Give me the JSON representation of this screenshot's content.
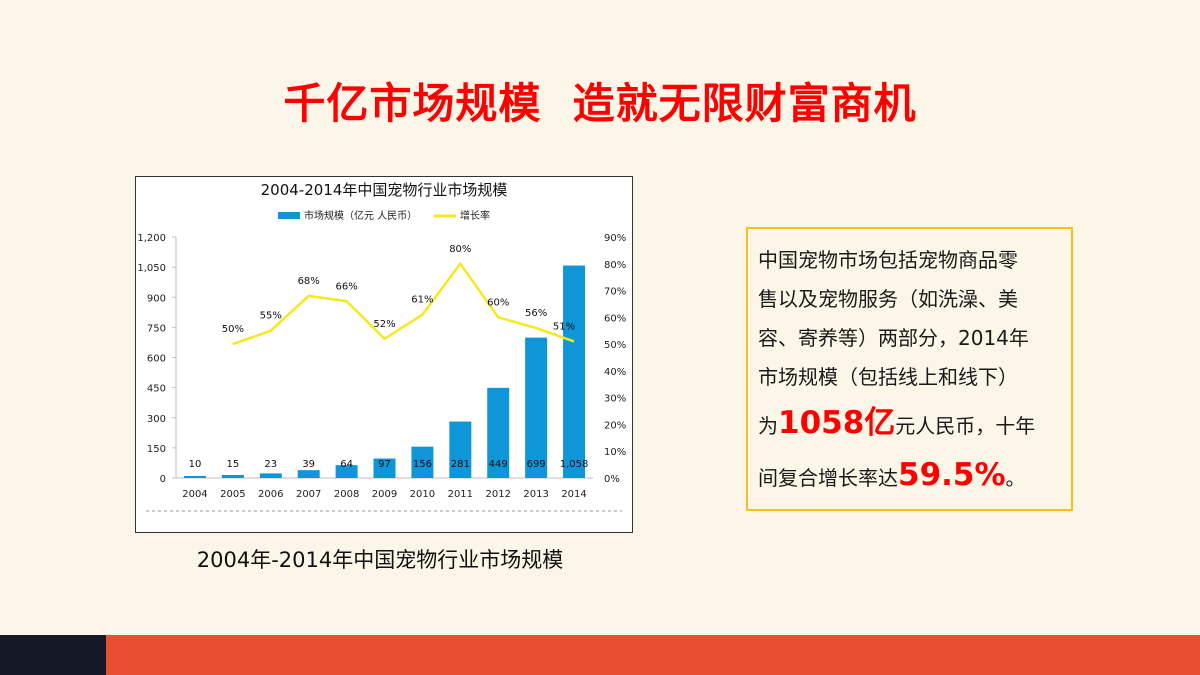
{
  "slide": {
    "title": "千亿市场规模  造就无限财富商机",
    "caption": "2004年-2014年中国宠物行业市场规模"
  },
  "info": {
    "line1": "中国宠物市场包括宠物商品零",
    "line2": "售以及宠物服务（如洗澡、美",
    "line3": "容、寄养等）两部分，2014年",
    "line4": "市场规模（包括线上和线下）",
    "line5_pre": "为",
    "line5_hl": "1058亿",
    "line5_post": "元人民币，十年",
    "line6_pre": "间复合增长率达",
    "line6_hl": "59.5%",
    "line6_post": "。"
  },
  "colors": {
    "title": "#ff0000",
    "bar": "#0e96d8",
    "line": "#f5e91e",
    "info_border": "#f2c21a",
    "footer_dark": "#151826",
    "footer_orange": "#e84e2f"
  },
  "chart_data": {
    "type": "bar",
    "title": "2004-2014年中国宠物行业市场规模",
    "categories": [
      "2004",
      "2005",
      "2006",
      "2007",
      "2008",
      "2009",
      "2010",
      "2011",
      "2012",
      "2013",
      "2014"
    ],
    "series": [
      {
        "name": "市场规模（亿元 人民币）",
        "type": "bar",
        "axis": "left",
        "values": [
          10,
          15,
          23,
          39,
          64,
          97,
          156,
          281,
          449,
          699,
          1058
        ],
        "labels": [
          "10",
          "15",
          "23",
          "39",
          "64",
          "97",
          "156",
          "281",
          "449",
          "699",
          "1,058"
        ]
      },
      {
        "name": "增长率",
        "type": "line",
        "axis": "right",
        "values": [
          null,
          50,
          55,
          68,
          66,
          52,
          61,
          80,
          60,
          56,
          51
        ],
        "labels": [
          "",
          "50%",
          "55%",
          "68%",
          "66%",
          "52%",
          "61%",
          "80%",
          "60%",
          "56%",
          "51%"
        ]
      }
    ],
    "ylim": [
      0,
      1200
    ],
    "yticks": [
      "0",
      "150",
      "300",
      "450",
      "600",
      "750",
      "900",
      "1,050",
      "1,200"
    ],
    "y2lim": [
      0,
      90
    ],
    "y2ticks": [
      "0%",
      "10%",
      "20%",
      "30%",
      "40%",
      "50%",
      "60%",
      "70%",
      "80%",
      "90%"
    ],
    "legend_position": "top",
    "grid": false
  }
}
